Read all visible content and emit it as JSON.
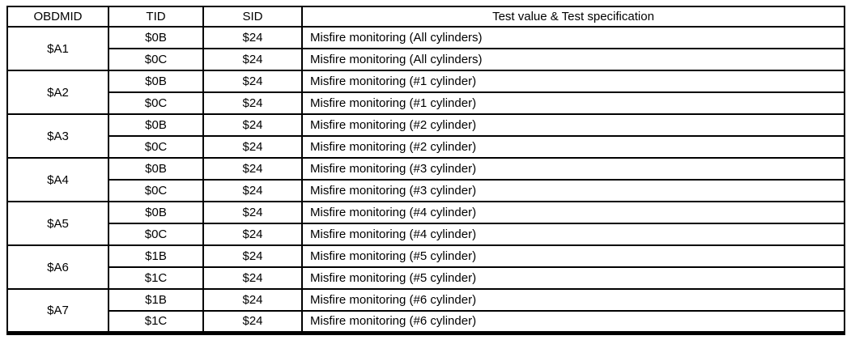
{
  "table": {
    "headers": {
      "obdmid": "OBDMID",
      "tid": "TID",
      "sid": "SID",
      "test": "Test value & Test specification"
    },
    "groups": [
      {
        "obdmid": "$A1",
        "rows": [
          {
            "tid": "$0B",
            "sid": "$24",
            "test": "Misfire monitoring (All cylinders)"
          },
          {
            "tid": "$0C",
            "sid": "$24",
            "test": "Misfire monitoring (All cylinders)"
          }
        ]
      },
      {
        "obdmid": "$A2",
        "rows": [
          {
            "tid": "$0B",
            "sid": "$24",
            "test": "Misfire monitoring (#1 cylinder)"
          },
          {
            "tid": "$0C",
            "sid": "$24",
            "test": "Misfire monitoring (#1 cylinder)"
          }
        ]
      },
      {
        "obdmid": "$A3",
        "rows": [
          {
            "tid": "$0B",
            "sid": "$24",
            "test": "Misfire monitoring (#2 cylinder)"
          },
          {
            "tid": "$0C",
            "sid": "$24",
            "test": "Misfire monitoring (#2 cylinder)"
          }
        ]
      },
      {
        "obdmid": "$A4",
        "rows": [
          {
            "tid": "$0B",
            "sid": "$24",
            "test": "Misfire monitoring (#3 cylinder)"
          },
          {
            "tid": "$0C",
            "sid": "$24",
            "test": "Misfire monitoring (#3 cylinder)"
          }
        ]
      },
      {
        "obdmid": "$A5",
        "rows": [
          {
            "tid": "$0B",
            "sid": "$24",
            "test": "Misfire monitoring (#4 cylinder)"
          },
          {
            "tid": "$0C",
            "sid": "$24",
            "test": "Misfire monitoring (#4 cylinder)"
          }
        ]
      },
      {
        "obdmid": "$A6",
        "rows": [
          {
            "tid": "$1B",
            "sid": "$24",
            "test": "Misfire monitoring (#5 cylinder)"
          },
          {
            "tid": "$1C",
            "sid": "$24",
            "test": "Misfire monitoring (#5 cylinder)"
          }
        ]
      },
      {
        "obdmid": "$A7",
        "rows": [
          {
            "tid": "$1B",
            "sid": "$24",
            "test": "Misfire monitoring (#6 cylinder)"
          },
          {
            "tid": "$1C",
            "sid": "$24",
            "test": "Misfire monitoring (#6 cylinder)"
          }
        ]
      }
    ]
  }
}
